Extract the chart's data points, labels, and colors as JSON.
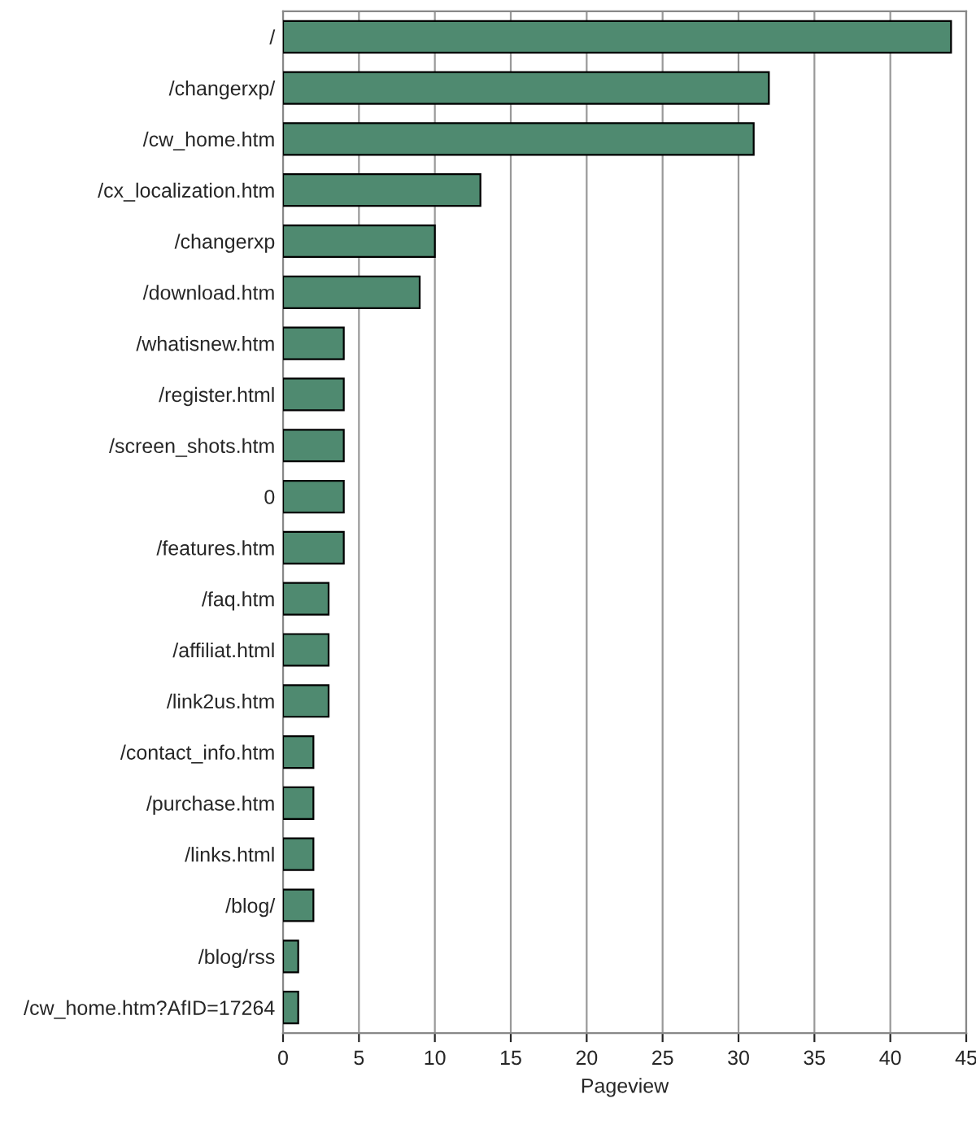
{
  "chart_data": {
    "type": "bar",
    "orientation": "horizontal",
    "xlabel": "Pageview",
    "categories": [
      "/",
      "/changerxp/",
      "/cw_home.htm",
      "/cx_localization.htm",
      "/changerxp",
      "/download.htm",
      "/whatisnew.htm",
      "/register.html",
      "/screen_shots.htm",
      "0",
      "/features.htm",
      "/faq.htm",
      "/affiliat.html",
      "/link2us.htm",
      "/contact_info.htm",
      "/purchase.htm",
      "/links.html",
      "/blog/",
      "/blog/rss",
      "/cw_home.htm?AfID=17264"
    ],
    "values": [
      44,
      32,
      31,
      13,
      10,
      9,
      4,
      4,
      4,
      4,
      4,
      3,
      3,
      3,
      2,
      2,
      2,
      2,
      1,
      1
    ],
    "color": "#4f8a70",
    "xlim": [
      0,
      45
    ],
    "xticks": [
      0,
      5,
      10,
      15,
      20,
      25,
      30,
      35,
      40,
      45
    ],
    "grid": "x"
  }
}
